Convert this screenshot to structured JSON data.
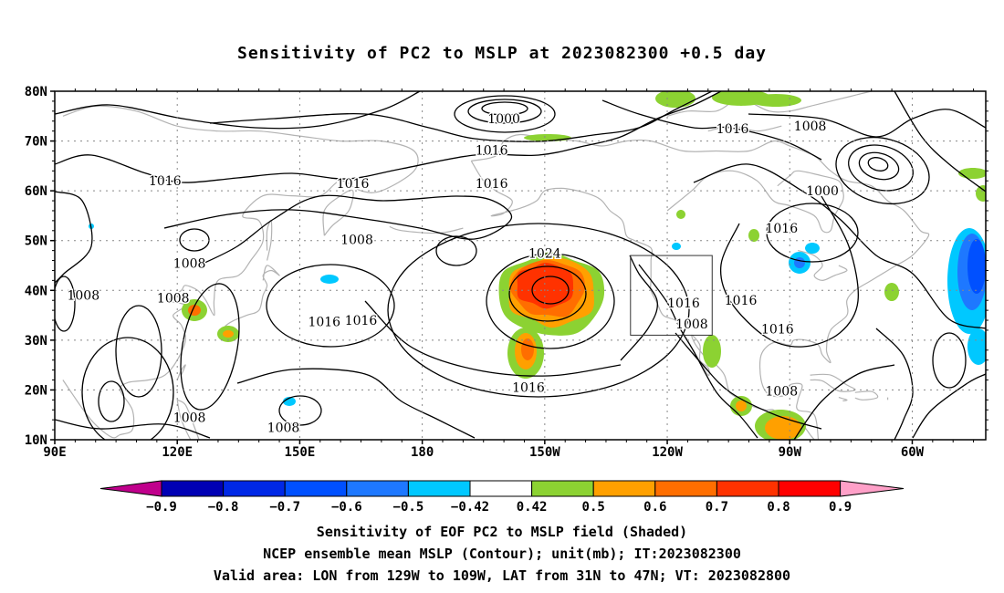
{
  "title": "Sensitivity of PC2 to MSLP at 2023082300 +0.5 day",
  "map": {
    "lat_labels": [
      "80N",
      "70N",
      "60N",
      "50N",
      "40N",
      "30N",
      "20N",
      "10N"
    ],
    "lon_labels": [
      "90E",
      "120E",
      "150E",
      "180",
      "150W",
      "120W",
      "90W",
      "60W"
    ],
    "lat_range": [
      10,
      80
    ],
    "lon_range": [
      90,
      318
    ],
    "valid_box": {
      "lon": [
        -129,
        -109
      ],
      "lat": [
        31,
        47
      ]
    },
    "contour_labels": [
      {
        "text": "1000",
        "lon": -160,
        "lat": 74.5
      },
      {
        "text": "1016",
        "lon": -163,
        "lat": 68.2
      },
      {
        "text": "1016",
        "lon": -104,
        "lat": 72.5
      },
      {
        "text": "1008",
        "lon": -85,
        "lat": 73
      },
      {
        "text": "1016",
        "lon": 117,
        "lat": 62
      },
      {
        "text": "1016",
        "lon": 163,
        "lat": 61.5
      },
      {
        "text": "1016",
        "lon": -163,
        "lat": 61.5
      },
      {
        "text": "1000",
        "lon": -82,
        "lat": 60
      },
      {
        "text": "1008",
        "lon": 164,
        "lat": 50.2
      },
      {
        "text": "1016",
        "lon": -92,
        "lat": 52.5
      },
      {
        "text": "1024",
        "lon": -150,
        "lat": 47.5
      },
      {
        "text": "1008",
        "lon": 123,
        "lat": 45.5
      },
      {
        "text": "1008",
        "lon": 97,
        "lat": 39
      },
      {
        "text": "1008",
        "lon": 119,
        "lat": 38.5
      },
      {
        "text": "1016",
        "lon": -116,
        "lat": 37.5
      },
      {
        "text": "1016",
        "lon": -102,
        "lat": 38
      },
      {
        "text": "1016",
        "lon": 156,
        "lat": 33.7
      },
      {
        "text": "1016",
        "lon": 165,
        "lat": 34
      },
      {
        "text": "1008",
        "lon": -114,
        "lat": 33.3
      },
      {
        "text": "1016",
        "lon": -93,
        "lat": 32.3
      },
      {
        "text": "1016",
        "lon": -154,
        "lat": 20.5
      },
      {
        "text": "1008",
        "lon": -92,
        "lat": 19.8
      },
      {
        "text": "1008",
        "lon": 123,
        "lat": 14.5
      },
      {
        "text": "1008",
        "lon": 146,
        "lat": 12.5
      }
    ]
  },
  "colorbar": {
    "labels": [
      "-0.9",
      "-0.8",
      "-0.7",
      "-0.6",
      "-0.5",
      "-0.42",
      "0.42",
      "0.5",
      "0.6",
      "0.7",
      "0.8",
      "0.9"
    ],
    "colors": [
      "#c0008c",
      "#0000b4",
      "#0028e6",
      "#0050ff",
      "#1e78ff",
      "#00c8ff",
      "#ffffff",
      "#8cd232",
      "#ffa000",
      "#ff6e00",
      "#ff3200",
      "#ff0000",
      "#ffa0c8"
    ]
  },
  "caption": {
    "line1": "Sensitivity of EOF PC2 to MSLP field (Shaded)",
    "line2": "NCEP ensemble mean MSLP (Contour); unit(mb); IT:2023082300",
    "line3": "Valid area: LON from 129W to 109W, LAT from 31N to 47N; VT: 2023082800"
  }
}
